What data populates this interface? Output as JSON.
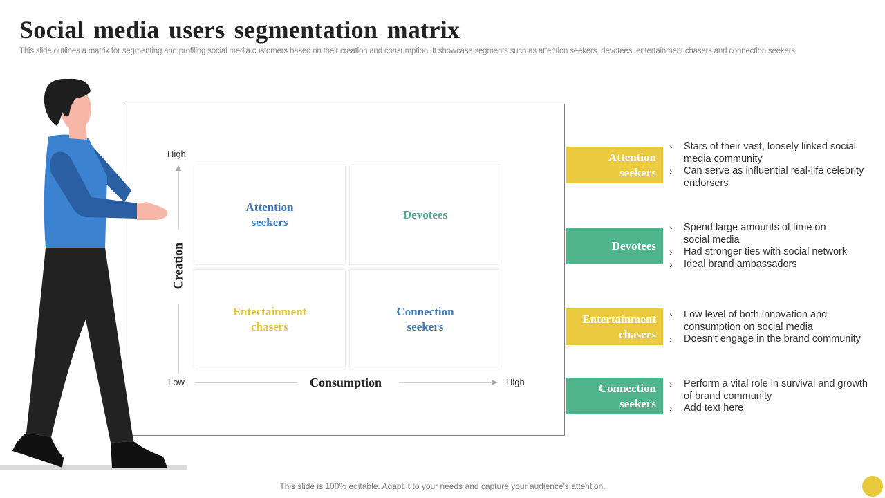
{
  "slide": {
    "title": "Social media users segmentation matrix",
    "subtitle": "This slide outlines a matrix for segmenting and profiling social media customers based on their creation and consumption. It showcase segments such as attention seekers, devotees, entertainment chasers and connection seekers.",
    "footer": "This slide is 100% editable. Adapt it to your needs and capture your audience's attention."
  },
  "colors": {
    "yellow": "#ecca40",
    "green": "#4fb48b",
    "blue_text": "#3d7bbf",
    "green_text": "#4fab8a",
    "yellow_text": "#e5c33a",
    "person_shirt": "#3b82d1",
    "person_pants": "#222222"
  },
  "matrix": {
    "y_axis": {
      "high": "High",
      "title": "Creation"
    },
    "x_axis": {
      "low": "Low",
      "title": "Consumption",
      "high": "High"
    },
    "cells": {
      "top_left": {
        "line1": "Attention",
        "line2": "seekers"
      },
      "top_right": {
        "line1": "Devotees"
      },
      "bottom_left": {
        "line1": "Entertainment",
        "line2": "chasers"
      },
      "bottom_right": {
        "line1": "Connection",
        "line2": "seekers"
      }
    }
  },
  "segments": [
    {
      "name_line1": "Attention",
      "name_line2": "seekers",
      "color": "#ecca40",
      "bullets": [
        "Stars of their vast, loosely linked social media community",
        "Can serve as influential real-life celebrity endorsers"
      ]
    },
    {
      "name_line1": "Devotees",
      "name_line2": "",
      "color": "#4fb48b",
      "bullets": [
        "Spend large amounts of time on social media",
        "Had stronger ties with social network",
        "Ideal brand ambassadors"
      ]
    },
    {
      "name_line1": "Entertainment",
      "name_line2": "chasers",
      "color": "#ecca40",
      "bullets": [
        "Low level of both innovation and consumption on social media",
        "Doesn't engage in the brand community"
      ]
    },
    {
      "name_line1": "Connection",
      "name_line2": "seekers",
      "color": "#4fb48b",
      "bullets": [
        "Perform a vital role in survival and growth of brand community",
        "Add text here"
      ]
    }
  ],
  "icons": {
    "bullet": "chevron-right-icon",
    "person": "person-illustration"
  }
}
